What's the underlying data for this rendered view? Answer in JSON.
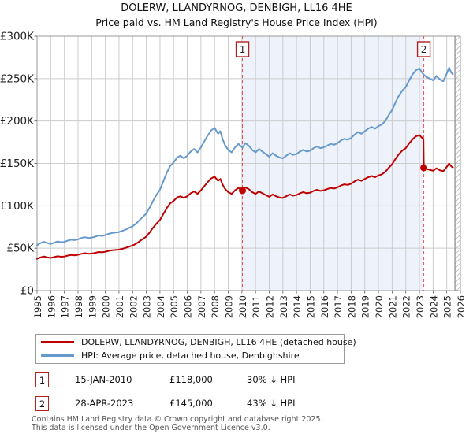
{
  "title": "DOLERW, LLANDYRNOG, DENBIGH, LL16 4HE",
  "subtitle": "Price paid vs. HM Land Registry's House Price Index (HPI)",
  "legend": [
    {
      "label": "DOLERW, LLANDYRNOG, DENBIGH, LL16 4HE (detached house)",
      "color": "#c00000"
    },
    {
      "label": "HPI: Average price, detached house, Denbighshire",
      "color": "#6699cc"
    }
  ],
  "annotations": [
    {
      "number": "1",
      "date": "15-JAN-2010",
      "price": "£118,000",
      "hpi_diff": "30% ↓ HPI"
    },
    {
      "number": "2",
      "date": "28-APR-2023",
      "price": "£145,000",
      "hpi_diff": "43% ↓ HPI"
    }
  ],
  "footer": {
    "line1": "Contains HM Land Registry data © Crown copyright and database right 2025.",
    "line2": "This data is licensed under the Open Government Licence v3.0."
  },
  "colors": {
    "price_line": "#c00000",
    "hpi_line": "#6699cc",
    "marker_dash_line": "#e05555",
    "marker_box_border": "#b22222",
    "grid": "#cccccc",
    "plot_border": "#999999",
    "shaded_region": "#edf2fb",
    "hatch": "#bbbbbb",
    "footer_text": "#555555"
  },
  "chart_data": {
    "type": "line",
    "title": "DOLERW, LLANDYRNOG, DENBIGH, LL16 4HE",
    "subtitle": "Price paid vs. HM Land Registry's House Price Index (HPI)",
    "xlim": [
      1995,
      2026
    ],
    "ylim": [
      0,
      300
    ],
    "y_values_unit": "GBP thousands",
    "grid": true,
    "x_ticks": [
      1995,
      1996,
      1997,
      1998,
      1999,
      2000,
      2001,
      2002,
      2003,
      2004,
      2005,
      2006,
      2007,
      2008,
      2009,
      2010,
      2011,
      2012,
      2013,
      2014,
      2015,
      2016,
      2017,
      2018,
      2019,
      2020,
      2021,
      2022,
      2023,
      2024,
      2025,
      2026
    ],
    "y_ticks": [
      {
        "v": 0,
        "label": "£0"
      },
      {
        "v": 50,
        "label": "£50K"
      },
      {
        "v": 100,
        "label": "£100K"
      },
      {
        "v": 150,
        "label": "£150K"
      },
      {
        "v": 200,
        "label": "£200K"
      },
      {
        "v": 250,
        "label": "£250K"
      },
      {
        "v": 300,
        "label": "£300K"
      }
    ],
    "shaded_region": {
      "from_x": 2010.04,
      "to_x": 2023.32
    },
    "hatched_region": {
      "from_x": 2025.6,
      "to_x": 2026
    },
    "sale_markers": [
      {
        "number": "1",
        "x": 2010.04,
        "y": 118,
        "date": "15-JAN-2010",
        "price_gbp": 118000,
        "vs_hpi": "30% below HPI"
      },
      {
        "number": "2",
        "x": 2023.32,
        "y": 145,
        "date": "28-APR-2023",
        "price_gbp": 145000,
        "vs_hpi": "43% below HPI"
      }
    ],
    "series": [
      {
        "name": "HPI: Average price, detached house, Denbighshire",
        "color": "#6699cc",
        "points": [
          [
            1995,
            53.5
          ],
          [
            1995.25,
            56
          ],
          [
            1995.5,
            57.5
          ],
          [
            1995.75,
            56
          ],
          [
            1996,
            55
          ],
          [
            1996.25,
            56.5
          ],
          [
            1996.5,
            58
          ],
          [
            1996.75,
            57
          ],
          [
            1997,
            57.5
          ],
          [
            1997.25,
            59
          ],
          [
            1997.5,
            60
          ],
          [
            1997.75,
            59.5
          ],
          [
            1998,
            60.5
          ],
          [
            1998.25,
            62
          ],
          [
            1998.5,
            63
          ],
          [
            1998.75,
            62
          ],
          [
            1999,
            62.5
          ],
          [
            1999.25,
            63.5
          ],
          [
            1999.5,
            65
          ],
          [
            1999.75,
            64.5
          ],
          [
            2000,
            65.5
          ],
          [
            2000.25,
            67
          ],
          [
            2000.5,
            68
          ],
          [
            2000.75,
            68.5
          ],
          [
            2001,
            69
          ],
          [
            2001.25,
            70.5
          ],
          [
            2001.5,
            72
          ],
          [
            2001.75,
            74
          ],
          [
            2002,
            76
          ],
          [
            2002.25,
            79
          ],
          [
            2002.5,
            83
          ],
          [
            2002.75,
            87
          ],
          [
            2003,
            91
          ],
          [
            2003.25,
            98
          ],
          [
            2003.5,
            106
          ],
          [
            2003.75,
            113
          ],
          [
            2004,
            119
          ],
          [
            2004.25,
            129
          ],
          [
            2004.5,
            139
          ],
          [
            2004.75,
            147
          ],
          [
            2005,
            151
          ],
          [
            2005.25,
            157
          ],
          [
            2005.5,
            159
          ],
          [
            2005.75,
            156
          ],
          [
            2006,
            159
          ],
          [
            2006.25,
            164
          ],
          [
            2006.5,
            167
          ],
          [
            2006.75,
            163
          ],
          [
            2007,
            169
          ],
          [
            2007.25,
            176
          ],
          [
            2007.5,
            183
          ],
          [
            2007.75,
            189
          ],
          [
            2008,
            192
          ],
          [
            2008.25,
            185
          ],
          [
            2008.42,
            188
          ],
          [
            2008.58,
            179
          ],
          [
            2008.75,
            172
          ],
          [
            2009,
            166
          ],
          [
            2009.25,
            163
          ],
          [
            2009.5,
            169
          ],
          [
            2009.75,
            173
          ],
          [
            2010.04,
            168.6
          ],
          [
            2010.25,
            174
          ],
          [
            2010.5,
            171
          ],
          [
            2010.75,
            166
          ],
          [
            2011,
            163
          ],
          [
            2011.25,
            167
          ],
          [
            2011.5,
            164
          ],
          [
            2011.75,
            161
          ],
          [
            2012,
            158
          ],
          [
            2012.25,
            162
          ],
          [
            2012.5,
            159
          ],
          [
            2012.75,
            157
          ],
          [
            2013,
            156
          ],
          [
            2013.25,
            159
          ],
          [
            2013.5,
            162
          ],
          [
            2013.75,
            160
          ],
          [
            2014,
            161
          ],
          [
            2014.25,
            164
          ],
          [
            2014.5,
            166
          ],
          [
            2014.75,
            164
          ],
          [
            2015,
            165
          ],
          [
            2015.25,
            168
          ],
          [
            2015.5,
            170
          ],
          [
            2015.75,
            168
          ],
          [
            2016,
            169
          ],
          [
            2016.25,
            171
          ],
          [
            2016.5,
            173
          ],
          [
            2016.75,
            172
          ],
          [
            2017,
            174
          ],
          [
            2017.25,
            177
          ],
          [
            2017.5,
            179
          ],
          [
            2017.75,
            178
          ],
          [
            2018,
            180
          ],
          [
            2018.25,
            184
          ],
          [
            2018.5,
            187
          ],
          [
            2018.75,
            185
          ],
          [
            2019,
            188
          ],
          [
            2019.25,
            191
          ],
          [
            2019.5,
            193
          ],
          [
            2019.75,
            191
          ],
          [
            2020,
            194
          ],
          [
            2020.25,
            196
          ],
          [
            2020.5,
            200
          ],
          [
            2020.75,
            207
          ],
          [
            2021,
            213
          ],
          [
            2021.25,
            222
          ],
          [
            2021.5,
            230
          ],
          [
            2021.75,
            236
          ],
          [
            2022,
            240
          ],
          [
            2022.25,
            248
          ],
          [
            2022.5,
            255
          ],
          [
            2022.75,
            260
          ],
          [
            2023,
            262
          ],
          [
            2023.29,
            255
          ],
          [
            2023.5,
            252
          ],
          [
            2023.75,
            250
          ],
          [
            2024,
            248
          ],
          [
            2024.25,
            253
          ],
          [
            2024.5,
            249
          ],
          [
            2024.75,
            247
          ],
          [
            2025,
            256
          ],
          [
            2025.17,
            263
          ],
          [
            2025.33,
            257
          ],
          [
            2025.45,
            255
          ]
        ]
      },
      {
        "name": "DOLERW, LLANDYRNOG, DENBIGH, LL16 4HE (detached house)",
        "color": "#c00000",
        "points": [
          [
            1995,
            37.4
          ],
          [
            1995.25,
            39.2
          ],
          [
            1995.5,
            40.2
          ],
          [
            1995.75,
            39.2
          ],
          [
            1996,
            38.5
          ],
          [
            1996.25,
            39.5
          ],
          [
            1996.5,
            40.6
          ],
          [
            1996.75,
            39.9
          ],
          [
            1997,
            40.2
          ],
          [
            1997.25,
            41.3
          ],
          [
            1997.5,
            42
          ],
          [
            1997.75,
            41.6
          ],
          [
            1998,
            42.3
          ],
          [
            1998.25,
            43.4
          ],
          [
            1998.5,
            44.1
          ],
          [
            1998.75,
            43.4
          ],
          [
            1999,
            43.7
          ],
          [
            1999.25,
            44.4
          ],
          [
            1999.5,
            45.5
          ],
          [
            1999.75,
            45.1
          ],
          [
            2000,
            45.8
          ],
          [
            2000.25,
            46.9
          ],
          [
            2000.5,
            47.6
          ],
          [
            2000.75,
            47.9
          ],
          [
            2001,
            48.3
          ],
          [
            2001.25,
            49.3
          ],
          [
            2001.5,
            50.4
          ],
          [
            2001.75,
            51.8
          ],
          [
            2002,
            53.2
          ],
          [
            2002.25,
            55.3
          ],
          [
            2002.5,
            58.1
          ],
          [
            2002.75,
            60.9
          ],
          [
            2003,
            63.7
          ],
          [
            2003.25,
            68.6
          ],
          [
            2003.5,
            74.2
          ],
          [
            2003.75,
            79.1
          ],
          [
            2004,
            83.3
          ],
          [
            2004.25,
            90.3
          ],
          [
            2004.5,
            97.3
          ],
          [
            2004.75,
            102.9
          ],
          [
            2005,
            105.7
          ],
          [
            2005.25,
            109.9
          ],
          [
            2005.5,
            111.3
          ],
          [
            2005.75,
            109.2
          ],
          [
            2006,
            111.3
          ],
          [
            2006.25,
            114.8
          ],
          [
            2006.5,
            116.9
          ],
          [
            2006.75,
            114.1
          ],
          [
            2007,
            118.3
          ],
          [
            2007.25,
            123.2
          ],
          [
            2007.5,
            128.1
          ],
          [
            2007.75,
            132.3
          ],
          [
            2008,
            134.4
          ],
          [
            2008.25,
            129.5
          ],
          [
            2008.42,
            131.6
          ],
          [
            2008.58,
            125.3
          ],
          [
            2008.75,
            120.4
          ],
          [
            2009,
            116.2
          ],
          [
            2009.25,
            114.1
          ],
          [
            2009.5,
            118.3
          ],
          [
            2009.75,
            121.1
          ],
          [
            2010.04,
            118
          ],
          [
            2010.25,
            121.8
          ],
          [
            2010.5,
            119.7
          ],
          [
            2010.75,
            116.2
          ],
          [
            2011,
            114.1
          ],
          [
            2011.25,
            116.9
          ],
          [
            2011.5,
            114.8
          ],
          [
            2011.75,
            112.7
          ],
          [
            2012,
            110.6
          ],
          [
            2012.25,
            113.4
          ],
          [
            2012.5,
            111.3
          ],
          [
            2012.75,
            109.9
          ],
          [
            2013,
            109.2
          ],
          [
            2013.25,
            111.3
          ],
          [
            2013.5,
            113.4
          ],
          [
            2013.75,
            112
          ],
          [
            2014,
            112.7
          ],
          [
            2014.25,
            114.8
          ],
          [
            2014.5,
            116.2
          ],
          [
            2014.75,
            114.8
          ],
          [
            2015,
            115.5
          ],
          [
            2015.25,
            117.6
          ],
          [
            2015.5,
            119
          ],
          [
            2015.75,
            117.6
          ],
          [
            2016,
            118.3
          ],
          [
            2016.25,
            119.7
          ],
          [
            2016.5,
            121.1
          ],
          [
            2016.75,
            120.4
          ],
          [
            2017,
            121.8
          ],
          [
            2017.25,
            123.9
          ],
          [
            2017.5,
            125.3
          ],
          [
            2017.75,
            124.6
          ],
          [
            2018,
            126
          ],
          [
            2018.25,
            128.8
          ],
          [
            2018.5,
            130.9
          ],
          [
            2018.75,
            129.5
          ],
          [
            2019,
            131.6
          ],
          [
            2019.25,
            133.7
          ],
          [
            2019.5,
            135.1
          ],
          [
            2019.75,
            133.7
          ],
          [
            2020,
            135.8
          ],
          [
            2020.25,
            137.2
          ],
          [
            2020.5,
            140
          ],
          [
            2020.75,
            144.9
          ],
          [
            2021,
            149.1
          ],
          [
            2021.25,
            155.4
          ],
          [
            2021.5,
            161
          ],
          [
            2021.75,
            165.2
          ],
          [
            2022,
            168
          ],
          [
            2022.25,
            173.6
          ],
          [
            2022.5,
            178.5
          ],
          [
            2022.75,
            182
          ],
          [
            2023,
            183.4
          ],
          [
            2023.29,
            178.4
          ],
          [
            2023.32,
            145
          ],
          [
            2023.5,
            143.6
          ],
          [
            2023.75,
            142.5
          ],
          [
            2024,
            141.4
          ],
          [
            2024.25,
            144.2
          ],
          [
            2024.5,
            141.9
          ],
          [
            2024.75,
            140.8
          ],
          [
            2025,
            145.9
          ],
          [
            2025.17,
            149.9
          ],
          [
            2025.33,
            146.5
          ],
          [
            2025.45,
            145.3
          ]
        ]
      }
    ]
  }
}
